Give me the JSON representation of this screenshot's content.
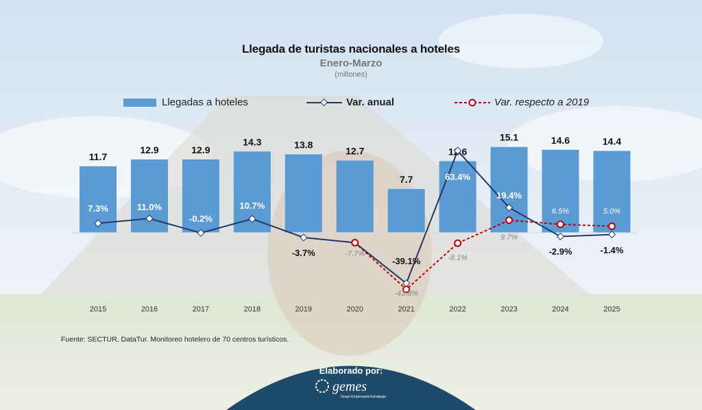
{
  "title": "Llegada de turistas nacionales a hoteles",
  "subtitle": "Enero-Marzo",
  "unit": "(millones)",
  "legend": {
    "bars": "Llegadas a hoteles",
    "anual": "Var. anual",
    "vs2019": "Var. respecto a 2019"
  },
  "source": "Fuente: SECTUR, DataTur. Monitoreo hotelero de 70 centros turísticos.",
  "made_by": "Elaborado por:",
  "logo": {
    "name": "gemes",
    "tagline": "Grupo Empresarial Estrategia"
  },
  "colors": {
    "bar": "#5b9bd5",
    "anual": "#1f3864",
    "vs2019": "#c00000",
    "footer": "#1e4b6a"
  },
  "chart_data": {
    "type": "bar",
    "categories": [
      "2015",
      "2016",
      "2017",
      "2018",
      "2019",
      "2020",
      "2021",
      "2022",
      "2023",
      "2024",
      "2025"
    ],
    "series": [
      {
        "name": "Llegadas a hoteles",
        "type": "bar",
        "values": [
          11.7,
          12.9,
          12.9,
          14.3,
          13.8,
          12.7,
          7.7,
          12.6,
          15.1,
          14.6,
          14.4
        ]
      },
      {
        "name": "Var. anual",
        "type": "line",
        "values": [
          7.3,
          11.0,
          -0.2,
          10.7,
          -3.7,
          -7.7,
          -39.1,
          63.4,
          19.4,
          -2.9,
          -1.4
        ]
      },
      {
        "name": "Var. respecto a 2019",
        "type": "line",
        "values": [
          null,
          null,
          null,
          null,
          null,
          -7.7,
          -43.8,
          -8.1,
          9.7,
          6.5,
          5.0
        ]
      }
    ],
    "bar_labels": [
      "11.7",
      "12.9",
      "12.9",
      "14.3",
      "13.8",
      "12.7",
      "7.7",
      "12.6",
      "15.1",
      "14.6",
      "14.4"
    ],
    "anual_labels": [
      "7.3%",
      "11.0%",
      "-0.2%",
      "10.7%",
      "-3.7%",
      "",
      "-39.1%",
      "63.4%",
      "19.4%",
      "-2.9%",
      "-1.4%"
    ],
    "vs2019_labels": [
      "",
      "",
      "",
      "",
      "",
      "-7.7%",
      "-43.8%",
      "-8.1%",
      "9.7%",
      "6.5%",
      "5.0%"
    ],
    "legend_position": "top",
    "grid": false
  }
}
